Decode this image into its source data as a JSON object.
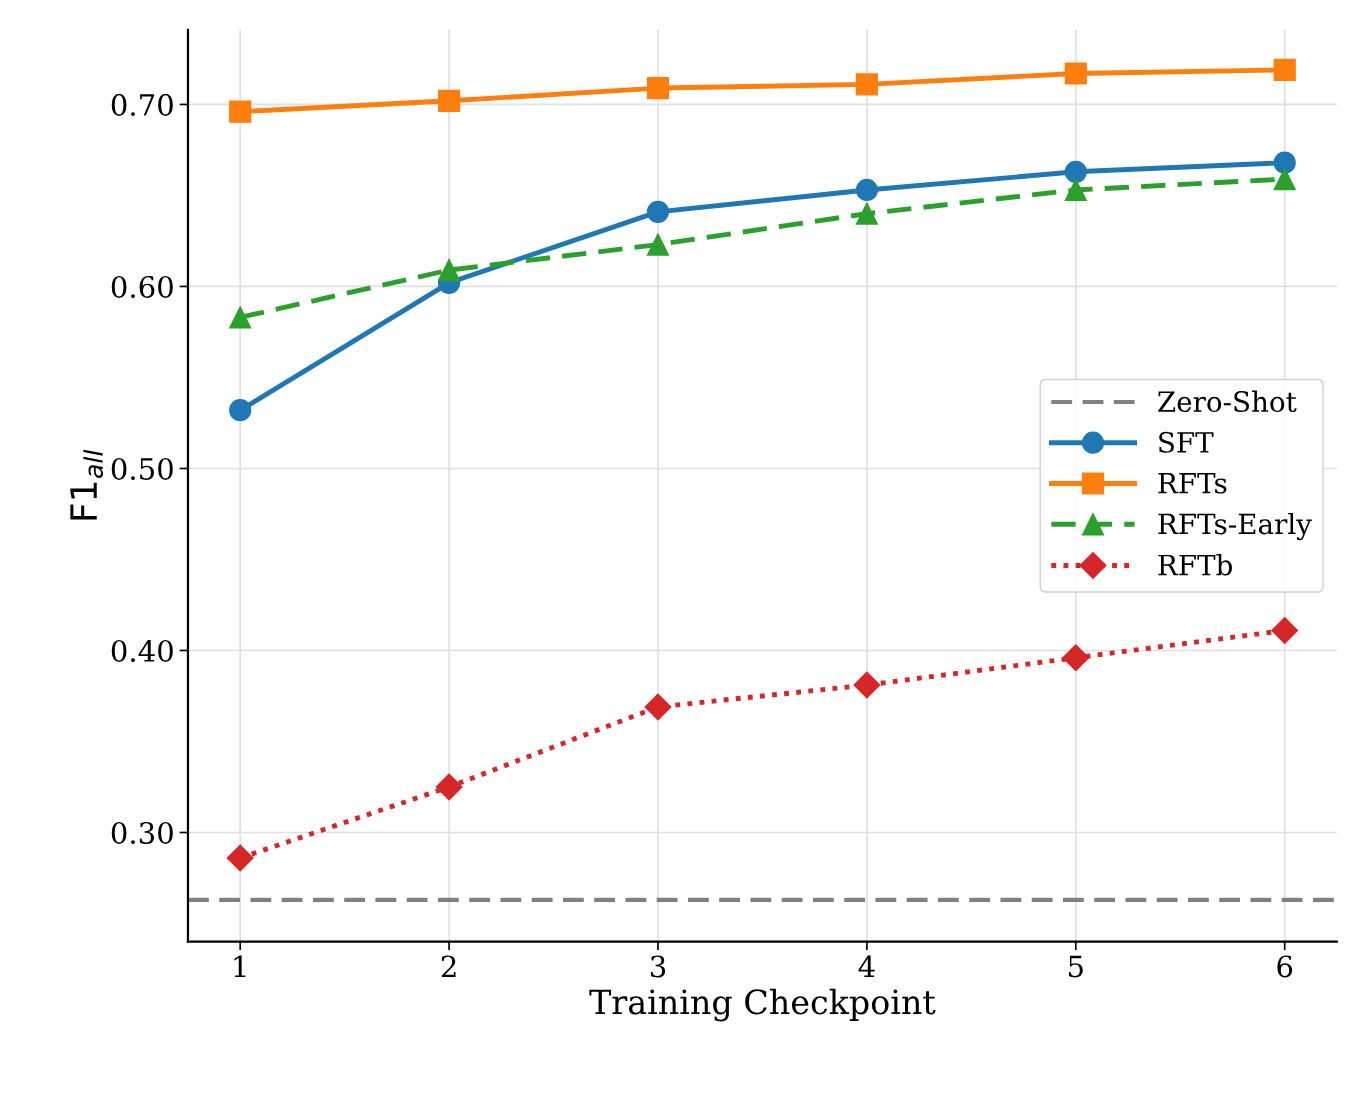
{
  "chart_data": {
    "type": "line",
    "xlabel": "Training Checkpoint",
    "ylabel": "F1$_{all}$",
    "x": [
      1,
      2,
      3,
      4,
      5,
      6
    ],
    "series": [
      {
        "name": "SFT",
        "color": "#1f77b4",
        "marker": "circle",
        "line_style": "solid",
        "values": [
          0.532,
          0.602,
          0.641,
          0.653,
          0.663,
          0.668
        ]
      },
      {
        "name": "RFTs",
        "color": "#ff7f0e",
        "marker": "square",
        "line_style": "solid",
        "values": [
          0.696,
          0.702,
          0.709,
          0.711,
          0.717,
          0.719
        ]
      },
      {
        "name": "RFTs-Early",
        "color": "#2ca02c",
        "marker": "triangle",
        "line_style": "dashed",
        "values": [
          0.583,
          0.609,
          0.623,
          0.64,
          0.653,
          0.659
        ]
      },
      {
        "name": "RFTb",
        "color": "#d62728",
        "marker": "diamond",
        "line_style": "dotted",
        "values": [
          0.286,
          0.325,
          0.369,
          0.381,
          0.396,
          0.411
        ]
      }
    ],
    "ref_lines": [
      {
        "axis": "y",
        "value": 0.263,
        "label": "Zero-Shot",
        "color": "#808080",
        "line_style": "dashed"
      }
    ],
    "xlim": [
      0.75,
      6.25
    ],
    "xticks": [
      1,
      2,
      3,
      4,
      5,
      6
    ],
    "ylim": [
      0.24,
      0.741
    ],
    "yticks": [
      {
        "value": 0.3,
        "label": "0.30"
      },
      {
        "value": 0.4,
        "label": "0.40"
      },
      {
        "value": 0.5,
        "label": "0.50"
      },
      {
        "value": 0.6,
        "label": "0.60"
      },
      {
        "value": 0.7,
        "label": "0.70"
      }
    ],
    "grid": true,
    "legend": "right"
  }
}
